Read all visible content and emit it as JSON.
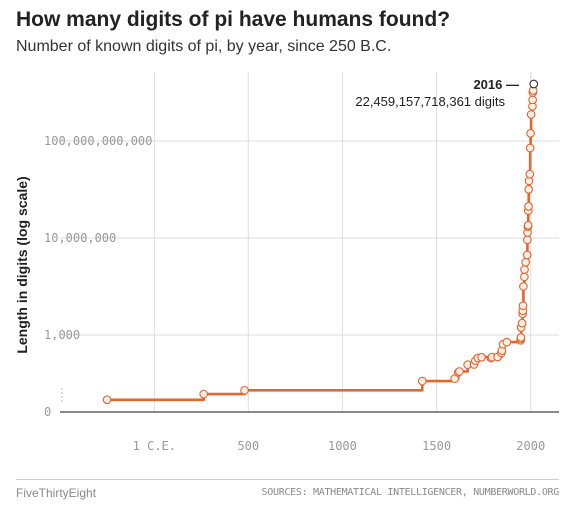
{
  "title": "How many digits of pi have humans found?",
  "subtitle": "Number of known digits of pi, by year, since 250 B.C.",
  "footer": {
    "brand": "FiveThirtyEight",
    "sources": "SOURCES: MATHEMATICAL INTELLIGENCER, NUMBERWORLD.ORG"
  },
  "colors": {
    "series": "#e0672f",
    "grid": "#dddddd",
    "axis": "#444444",
    "text": "#222222",
    "muted": "#999999"
  },
  "chart_data": {
    "type": "line",
    "title": "How many digits of pi have humans found?",
    "subtitle": "Number of known digits of pi, by year, since 250 B.C.",
    "ylabel": "Length in digits (log scale)",
    "xlabel": "",
    "y_scale": "log",
    "line_style": "step",
    "grid": true,
    "xlim": [
      -500,
      2150
    ],
    "x_ticks": [
      {
        "value": 1,
        "label": "1 C.E."
      },
      {
        "value": 500,
        "label": "500"
      },
      {
        "value": 1000,
        "label": "1000"
      },
      {
        "value": 1500,
        "label": "1500"
      },
      {
        "value": 2000,
        "label": "2000"
      }
    ],
    "y_ticks": [
      {
        "value": 1,
        "label": "0"
      },
      {
        "value": 1000,
        "label": "1,000"
      },
      {
        "value": 10000000,
        "label": "10,000,000"
      },
      {
        "value": 100000000000,
        "label": "100,000,000,000"
      }
    ],
    "annotation": {
      "year_label": "2016 —",
      "value_label": "22,459,157,718,361 digits",
      "x": 2016,
      "y": 22459157718361
    },
    "series": [
      {
        "x": [
          -250,
          263,
          480,
          1424,
          1596,
          1615,
          1621,
          1665,
          1699,
          1706,
          1719,
          1739,
          1789,
          1794,
          1824,
          1844,
          1847,
          1853,
          1873,
          1946,
          1947,
          1948,
          1949,
          1954,
          1957,
          1958,
          1959,
          1961,
          1966,
          1967,
          1973,
          1981,
          1982,
          1983,
          1985,
          1986,
          1987,
          1988,
          1989,
          1991,
          1995,
          1997,
          1999,
          2002,
          2009,
          2010,
          2011,
          2013,
          2016
        ],
        "y": [
          3,
          5,
          7,
          16,
          20,
          35,
          38,
          70,
          71,
          100,
          127,
          136,
          126,
          137,
          139,
          200,
          248,
          440,
          527,
          620,
          710,
          808,
          2037,
          3089,
          7480,
          10000,
          16167,
          100265,
          250000,
          500000,
          1001250,
          2000036,
          8388576,
          16777206,
          29360111,
          33554414,
          134214700,
          201326551,
          1011196691,
          2260000000,
          4294960000,
          51539600000,
          206158430000,
          1241100000000,
          2699999990000,
          5000000000000,
          10000000000050,
          12100000000050,
          22459157718361
        ]
      }
    ]
  }
}
